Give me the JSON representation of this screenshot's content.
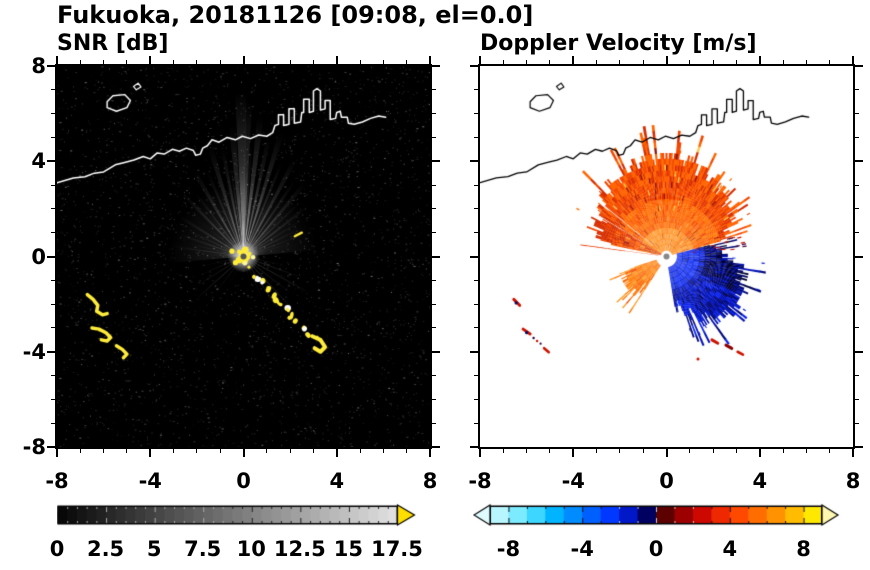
{
  "title": "Fukuoka, 20181126 [09:08, el=0.0]",
  "panels": {
    "snr": {
      "label": "SNR [dB]"
    },
    "velocity": {
      "label": "Doppler Velocity [m/s]"
    }
  },
  "axes": {
    "xmin": -8,
    "xmax": 8,
    "ymin": -8,
    "ymax": 8,
    "major_ticks": [
      -8,
      -4,
      0,
      4,
      8
    ],
    "minor_step": 1,
    "x_tick_labels": [
      "-8",
      "-4",
      "0",
      "4",
      "8"
    ],
    "y_tick_labels": [
      "8",
      "4",
      "0",
      "-4",
      "-8"
    ]
  },
  "colorbars": {
    "snr": {
      "min": 0,
      "max": 17.5,
      "tick_values": [
        0,
        2.5,
        5,
        7.5,
        10,
        12.5,
        15,
        17.5
      ],
      "tick_labels": [
        "0",
        "2.5",
        "5",
        "7.5",
        "10",
        "12.5",
        "15",
        "17.5"
      ],
      "colormap": "grayscale",
      "over_arrow_color": "#ffdf00"
    },
    "velocity": {
      "min": -9,
      "max": 9,
      "tick_values": [
        -8,
        -4,
        0,
        4,
        8
      ],
      "tick_labels": [
        "-8",
        "-4",
        "0",
        "4",
        "8"
      ],
      "colormap": "doppler",
      "step_colors": [
        "#b8f6ff",
        "#7ceaff",
        "#3cd6ff",
        "#00b4ff",
        "#008cff",
        "#0060ff",
        "#0038ff",
        "#0018c8",
        "#000060",
        "#5c0000",
        "#9c0000",
        "#cc0800",
        "#ee2800",
        "#ff4800",
        "#ff6c00",
        "#ff9200",
        "#ffbc00",
        "#ffe800"
      ],
      "under_arrow_color": "#e0fbff",
      "over_arrow_color": "#fff8b0"
    }
  },
  "chart_data": [
    {
      "type": "heatmap",
      "panel": "snr",
      "title": "SNR [dB]",
      "xlim": [
        -8,
        8
      ],
      "ylim": [
        -8,
        8
      ],
      "value_range": [
        0,
        17.5
      ],
      "background": "#000000",
      "noise_count": 3200,
      "radar_center": [
        0,
        0
      ],
      "beams": [
        [
          91,
          2.0,
          7.0,
          0.95
        ],
        [
          88,
          1.2,
          6.6,
          0.85
        ],
        [
          95,
          1.5,
          5.6,
          0.8
        ],
        [
          83,
          1.4,
          6.0,
          0.88
        ],
        [
          101,
          1.1,
          4.7,
          0.7
        ],
        [
          78,
          1.1,
          5.2,
          0.75
        ],
        [
          107,
          1.4,
          4.9,
          0.72
        ],
        [
          73,
          1.3,
          5.5,
          0.78
        ],
        [
          113,
          1.0,
          3.9,
          0.6
        ],
        [
          68,
          1.0,
          4.3,
          0.62
        ],
        [
          120,
          1.4,
          4.2,
          0.66
        ],
        [
          62,
          1.3,
          4.7,
          0.68
        ],
        [
          127,
          1.0,
          3.4,
          0.52
        ],
        [
          56,
          1.0,
          3.9,
          0.58
        ],
        [
          134,
          1.3,
          3.7,
          0.58
        ],
        [
          50,
          1.3,
          4.1,
          0.6
        ],
        [
          141,
          0.9,
          3.0,
          0.46
        ],
        [
          44,
          0.9,
          3.3,
          0.5
        ],
        [
          148,
          1.2,
          3.2,
          0.5
        ],
        [
          38,
          1.2,
          3.5,
          0.52
        ],
        [
          155,
          0.8,
          2.6,
          0.4
        ],
        [
          32,
          0.8,
          2.9,
          0.44
        ],
        [
          161,
          1.0,
          2.9,
          0.42
        ],
        [
          26,
          1.0,
          2.7,
          0.4
        ],
        [
          167,
          0.8,
          2.3,
          0.34
        ],
        [
          20,
          0.8,
          2.4,
          0.34
        ],
        [
          172,
          0.8,
          3.1,
          0.42
        ],
        [
          177,
          0.7,
          1.9,
          0.28
        ],
        [
          15,
          0.7,
          2.0,
          0.28
        ],
        [
          98,
          0.7,
          4.0,
          0.5
        ],
        [
          86,
          0.6,
          4.8,
          0.55
        ],
        [
          110,
          0.6,
          3.2,
          0.4
        ],
        [
          65,
          0.6,
          3.4,
          0.42
        ],
        [
          47,
          0.6,
          2.9,
          0.36
        ],
        [
          130,
          0.6,
          2.7,
          0.34
        ],
        [
          185,
          0.7,
          1.6,
          0.22
        ],
        [
          193,
          0.8,
          1.9,
          0.26
        ],
        [
          203,
          0.9,
          2.1,
          0.3
        ],
        [
          212,
          0.8,
          2.5,
          0.34
        ],
        [
          222,
          0.9,
          2.9,
          0.38
        ],
        [
          232,
          0.8,
          2.1,
          0.28
        ],
        [
          243,
          0.7,
          1.6,
          0.2
        ],
        [
          -12,
          0.8,
          1.9,
          0.3
        ],
        [
          -20,
          0.9,
          2.7,
          0.4
        ],
        [
          -29,
          0.7,
          3.3,
          0.45
        ],
        [
          -38,
          0.9,
          2.6,
          0.36
        ],
        [
          -47,
          0.7,
          3.5,
          0.45
        ],
        [
          -57,
          0.8,
          3.0,
          0.4
        ],
        [
          -66,
          0.7,
          2.2,
          0.28
        ],
        [
          -76,
          0.6,
          1.6,
          0.2
        ]
      ],
      "shadow_rays": [
        [
          141,
          0.5,
          3.9
        ],
        [
          -51,
          0.6,
          4.5
        ],
        [
          186,
          0.5,
          2.6
        ]
      ],
      "clutter_chain": [
        [
          0.5,
          -0.85
        ],
        [
          0.75,
          -1.1
        ],
        [
          1.0,
          -1.4
        ],
        [
          1.25,
          -1.65
        ],
        [
          1.5,
          -1.95
        ],
        [
          1.8,
          -2.25
        ],
        [
          2.05,
          -2.55
        ],
        [
          2.3,
          -2.8
        ],
        [
          2.55,
          -3.05
        ],
        [
          2.8,
          -3.3
        ],
        [
          3.1,
          -3.55
        ]
      ],
      "clutter_blob": [
        [
          2.95,
          -3.35
        ],
        [
          3.3,
          -3.5
        ],
        [
          3.5,
          -3.8
        ],
        [
          3.3,
          -4.0
        ],
        [
          3.05,
          -3.85
        ]
      ],
      "clutter_arcs": [
        [
          [
            -6.7,
            -1.6
          ],
          [
            -6.45,
            -1.8
          ],
          [
            -6.25,
            -2.05
          ],
          [
            -6.3,
            -2.3
          ],
          [
            -6.05,
            -2.45
          ],
          [
            -5.85,
            -2.4
          ]
        ],
        [
          [
            -6.5,
            -3.0
          ],
          [
            -6.2,
            -3.05
          ],
          [
            -5.9,
            -3.2
          ],
          [
            -5.7,
            -3.4
          ],
          [
            -5.85,
            -3.55
          ],
          [
            -6.1,
            -3.5
          ]
        ],
        [
          [
            -5.45,
            -3.75
          ],
          [
            -5.2,
            -3.9
          ],
          [
            -5.0,
            -4.1
          ],
          [
            -5.15,
            -4.25
          ]
        ]
      ],
      "small_dash": [
        [
          2.2,
          0.85
        ],
        [
          2.5,
          1.0
        ]
      ]
    },
    {
      "type": "heatmap",
      "panel": "velocity",
      "title": "Doppler Velocity [m/s]",
      "xlim": [
        -8,
        8
      ],
      "ylim": [
        -8,
        8
      ],
      "value_range": [
        -9,
        9
      ],
      "background": "#ffffff",
      "radar_center": [
        0,
        0
      ],
      "fans": [
        {
          "name": "outbound-orange",
          "a0": 16,
          "a1": 168,
          "r_in": 0.25,
          "r_base": 3.6,
          "e0": 0.72,
          "e1": 0.42
        },
        {
          "name": "inbound-blue",
          "a0": -80,
          "a1": 14,
          "r_in": 0.45,
          "r_base": 3.1,
          "e0": 0.6,
          "e1": 0.52
        },
        {
          "name": "outbound-small",
          "a0": 198,
          "a1": 236,
          "r_in": 0.45,
          "r_base": 2.0,
          "e0": 0.72,
          "e1": 0.3
        }
      ],
      "thin_ray": {
        "angle": 172.5,
        "r0": 0.35,
        "r1": 3.55,
        "color": "#e63a00"
      },
      "gap_rays": [
        [
          141.5,
          0.3,
          0.7,
          3.9
        ],
        [
          149.5,
          0.22,
          0.9,
          3.4
        ]
      ],
      "specks": [
        {
          "seg": [
            [
              -6.55,
              -1.8
            ],
            [
              -6.3,
              -2.05
            ]
          ],
          "color": "#cc1400",
          "lw": 3
        },
        {
          "dot": [
            -6.45,
            -1.95
          ],
          "color": "#000a64",
          "r": 1.6
        },
        {
          "seg": [
            [
              -6.15,
              -3.05
            ],
            [
              -5.85,
              -3.25
            ]
          ],
          "color": "#cc1400",
          "lw": 3
        },
        {
          "dot": [
            -6.0,
            -3.2
          ],
          "color": "#000a64",
          "r": 1.6
        },
        {
          "dot": [
            -5.7,
            -3.42
          ],
          "color": "#30003c",
          "r": 1.2
        },
        {
          "dot": [
            -5.55,
            -3.55
          ],
          "color": "#cc1400",
          "r": 1.2
        },
        {
          "dot": [
            -5.4,
            -3.66
          ],
          "color": "#30003c",
          "r": 1.1
        },
        {
          "seg": [
            [
              -5.25,
              -3.85
            ],
            [
              -5.05,
              -4.02
            ]
          ],
          "color": "#cc1400",
          "lw": 2.6
        },
        {
          "seg": [
            [
              1.95,
              -3.5
            ],
            [
              2.2,
              -3.64
            ]
          ],
          "color": "#cc1400",
          "lw": 3
        },
        {
          "seg": [
            [
              2.55,
              -3.72
            ],
            [
              2.8,
              -3.86
            ]
          ],
          "color": "#8c0000",
          "lw": 3
        },
        {
          "seg": [
            [
              3.05,
              -4.0
            ],
            [
              3.28,
              -4.12
            ]
          ],
          "color": "#cc1400",
          "lw": 2.6
        },
        {
          "dot": [
            1.35,
            -4.3
          ],
          "color": "#cc1400",
          "r": 1.5
        }
      ]
    }
  ],
  "coastline": {
    "mainland": [
      [
        -8,
        3.1
      ],
      [
        -7.3,
        3.3
      ],
      [
        -6.8,
        3.35
      ],
      [
        -6.4,
        3.5
      ],
      [
        -6.0,
        3.55
      ],
      [
        -5.5,
        3.85
      ],
      [
        -5.1,
        3.95
      ],
      [
        -4.7,
        4.05
      ],
      [
        -4.3,
        4.2
      ],
      [
        -4.0,
        4.1
      ],
      [
        -3.7,
        4.35
      ],
      [
        -3.4,
        4.3
      ],
      [
        -3.05,
        4.5
      ],
      [
        -2.75,
        4.42
      ],
      [
        -2.45,
        4.55
      ],
      [
        -2.15,
        4.45
      ],
      [
        -2.05,
        4.25
      ],
      [
        -1.85,
        4.3
      ],
      [
        -1.75,
        4.55
      ],
      [
        -1.55,
        4.65
      ],
      [
        -1.35,
        4.9
      ],
      [
        -1.05,
        4.8
      ],
      [
        -0.7,
        5.0
      ],
      [
        -0.35,
        4.9
      ],
      [
        -0.05,
        5.05
      ],
      [
        0.3,
        4.95
      ],
      [
        0.65,
        5.1
      ],
      [
        1.0,
        5.05
      ],
      [
        1.25,
        5.2
      ],
      [
        1.35,
        5.5
      ],
      [
        1.5,
        5.55
      ],
      [
        1.5,
        5.95
      ],
      [
        1.72,
        5.95
      ],
      [
        1.72,
        5.5
      ],
      [
        1.95,
        5.55
      ],
      [
        1.95,
        6.2
      ],
      [
        2.18,
        6.2
      ],
      [
        2.18,
        5.6
      ],
      [
        2.45,
        5.65
      ],
      [
        2.5,
        6.05
      ],
      [
        2.58,
        6.05
      ],
      [
        2.58,
        6.6
      ],
      [
        2.82,
        6.6
      ],
      [
        2.82,
        6.05
      ],
      [
        3.0,
        6.1
      ],
      [
        3.0,
        6.95
      ],
      [
        3.15,
        7.05
      ],
      [
        3.3,
        6.95
      ],
      [
        3.3,
        6.15
      ],
      [
        3.5,
        6.2
      ],
      [
        3.5,
        6.55
      ],
      [
        3.72,
        6.55
      ],
      [
        3.72,
        5.75
      ],
      [
        3.95,
        5.8
      ],
      [
        4.0,
        6.05
      ],
      [
        4.15,
        6.1
      ],
      [
        4.2,
        5.85
      ],
      [
        4.45,
        5.85
      ],
      [
        4.5,
        5.6
      ],
      [
        4.75,
        5.55
      ],
      [
        5.1,
        5.65
      ],
      [
        5.45,
        5.8
      ],
      [
        5.8,
        5.9
      ],
      [
        6.1,
        5.85
      ]
    ],
    "island": [
      [
        -5.85,
        6.25
      ],
      [
        -5.45,
        6.1
      ],
      [
        -5.0,
        6.25
      ],
      [
        -4.85,
        6.55
      ],
      [
        -5.1,
        6.8
      ],
      [
        -5.6,
        6.75
      ],
      [
        -5.85,
        6.5
      ],
      [
        -5.85,
        6.25
      ]
    ],
    "islet": [
      [
        -4.6,
        7.0
      ],
      [
        -4.4,
        7.12
      ],
      [
        -4.52,
        7.28
      ],
      [
        -4.72,
        7.14
      ],
      [
        -4.6,
        7.0
      ]
    ]
  }
}
